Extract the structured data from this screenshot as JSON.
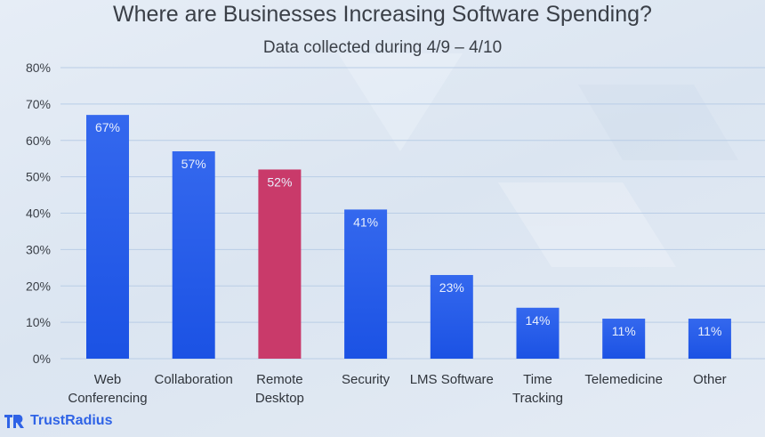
{
  "chart_data": {
    "type": "bar",
    "title": "Where are Businesses Increasing Software Spending?",
    "subtitle": "Data collected during 4/9 – 4/10",
    "categories": [
      [
        "Web",
        "Conferencing"
      ],
      [
        "Collaboration"
      ],
      [
        "Remote",
        "Desktop"
      ],
      [
        "Security"
      ],
      [
        "LMS Software"
      ],
      [
        "Time",
        "Tracking"
      ],
      [
        "Telemedicine"
      ],
      [
        "Other"
      ]
    ],
    "values": [
      67,
      57,
      52,
      41,
      23,
      14,
      11,
      11
    ],
    "data_labels": [
      "67%",
      "57%",
      "52%",
      "41%",
      "23%",
      "14%",
      "11%",
      "11%"
    ],
    "yticks": [
      "0%",
      "10%",
      "20%",
      "30%",
      "40%",
      "50%",
      "60%",
      "70%",
      "80%"
    ],
    "ylim": [
      0,
      80
    ],
    "grid": true,
    "colors": {
      "bar": "#2a61ec",
      "highlight": "#c93a6a",
      "highlight_index": 2
    }
  },
  "logo": {
    "text": "TrustRadius",
    "color": "#2f63e6"
  }
}
